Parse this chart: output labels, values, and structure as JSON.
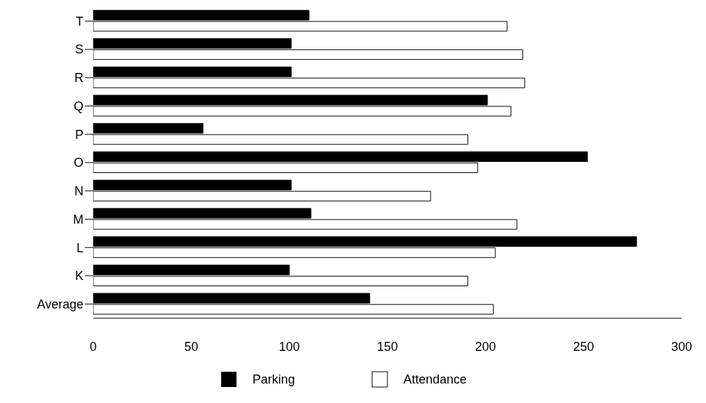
{
  "chart_data": {
    "type": "bar",
    "orientation": "horizontal",
    "categories": [
      "T",
      "S",
      "R",
      "Q",
      "P",
      "O",
      "N",
      "M",
      "L",
      "K",
      "Average"
    ],
    "series": [
      {
        "name": "Parking",
        "color": "#000000",
        "values": [
          110,
          101,
          101,
          201,
          56,
          252,
          101,
          111,
          277,
          100,
          141
        ]
      },
      {
        "name": "Attendance",
        "color": "#ffffff",
        "values": [
          211,
          219,
          220,
          213,
          191,
          196,
          172,
          216,
          205,
          191,
          204
        ]
      }
    ],
    "xlim": [
      0,
      300
    ],
    "xticks": [
      0,
      50,
      100,
      150,
      200,
      250,
      300
    ],
    "grid": false,
    "legend": "bottom"
  }
}
